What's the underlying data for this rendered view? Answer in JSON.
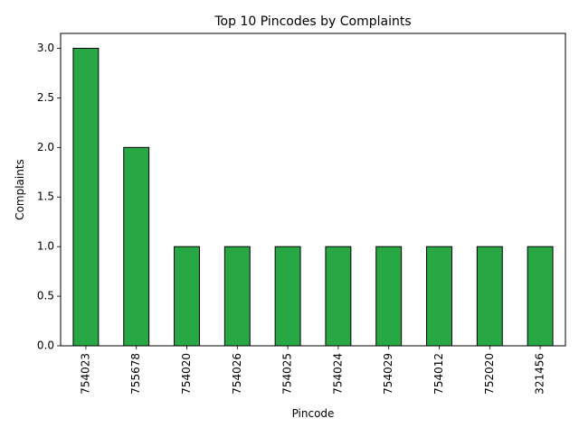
{
  "chart_data": {
    "type": "bar",
    "title": "Top 10 Pincodes by Complaints",
    "xlabel": "Pincode",
    "ylabel": "Complaints",
    "categories": [
      "754023",
      "755678",
      "754020",
      "754026",
      "754025",
      "754024",
      "754029",
      "754012",
      "752020",
      "321456"
    ],
    "values": [
      3,
      2,
      1,
      1,
      1,
      1,
      1,
      1,
      1,
      1
    ],
    "ylim": [
      0,
      3.15
    ],
    "yticks": [
      "0.0",
      "0.5",
      "1.0",
      "1.5",
      "2.0",
      "2.5",
      "3.0"
    ],
    "bar_color": "#27a844",
    "edge_color": "#000000",
    "grid": false,
    "legend": "none"
  }
}
